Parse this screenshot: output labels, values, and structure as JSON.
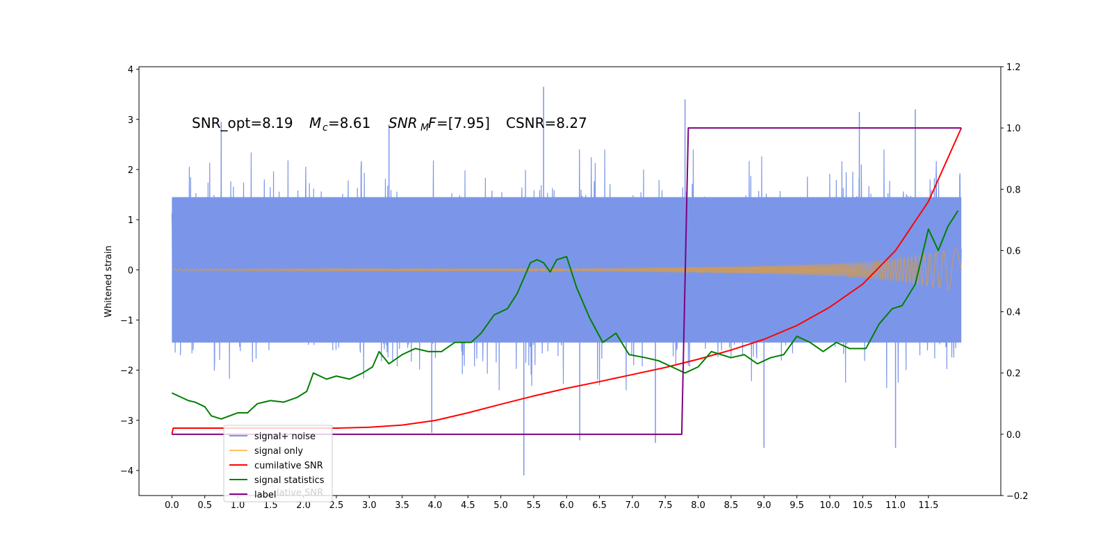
{
  "chart_data": {
    "type": "line",
    "annotation": {
      "snr_opt": "SNR_opt=8.19",
      "mc_symbol": "M",
      "mc_sub": "c",
      "mc_value": "=8.61",
      "snrmf_symbol": "SNR",
      "snrmf_sub": "M",
      "snrmf_tail": "F",
      "snrmf_value": "=[7.95]",
      "csnr": "CSNR=8.27"
    },
    "xlabel": "",
    "ylabel": "Whitened strain",
    "y2label": "",
    "xlim": [
      -0.5,
      12.6
    ],
    "ylim": [
      -4.5,
      4.05
    ],
    "y2lim": [
      -0.2,
      1.2
    ],
    "xticks": [
      "0.0",
      "0.5",
      "1.0",
      "1.5",
      "2.0",
      "2.5",
      "3.0",
      "3.5",
      "4.0",
      "4.5",
      "5.0",
      "5.5",
      "6.0",
      "6.5",
      "7.0",
      "7.5",
      "8.0",
      "8.5",
      "9.0",
      "9.5",
      "10.0",
      "10.5",
      "11.0",
      "11.5"
    ],
    "yticks": [
      "4",
      "3",
      "2",
      "1",
      "0",
      "−1",
      "−2",
      "−3",
      "−4"
    ],
    "y2ticks": [
      "1.2",
      "1.0",
      "0.8",
      "0.6",
      "0.4",
      "0.2",
      "0.0",
      "−0.2"
    ],
    "legend_position": "lower-left",
    "legend": [
      {
        "name": "signal+ noise",
        "color": "#7b96e8"
      },
      {
        "name": "signal only",
        "color": "#ffbf66"
      },
      {
        "name": "cumilative SNR",
        "color": "#ff0000"
      },
      {
        "name": "signal statistics",
        "color": "#007f00"
      },
      {
        "name": "label",
        "color": "#800080"
      }
    ],
    "legend_ghost_text": "lative SNR",
    "noise_envelope": {
      "x": [
        0.0,
        2.0,
        4.0,
        6.0,
        8.0,
        10.0,
        12.0
      ],
      "upper_typ": [
        1.6,
        1.6,
        1.6,
        1.6,
        1.6,
        1.6,
        1.6
      ],
      "lower_typ": [
        -1.6,
        -1.6,
        -1.6,
        -1.6,
        -1.6,
        -1.6,
        -1.6
      ],
      "peaks": [
        {
          "x": 5.65,
          "y": 3.65
        },
        {
          "x": 7.8,
          "y": 3.4
        },
        {
          "x": 11.3,
          "y": 3.2
        },
        {
          "x": 10.45,
          "y": 3.15
        },
        {
          "x": 5.35,
          "y": -4.1
        },
        {
          "x": 7.35,
          "y": -3.45
        },
        {
          "x": 9.0,
          "y": -3.55
        },
        {
          "x": 11.0,
          "y": -3.55
        },
        {
          "x": 6.2,
          "y": -3.4
        },
        {
          "x": 3.95,
          "y": -3.25
        },
        {
          "x": 0.75,
          "y": 2.95
        },
        {
          "x": 3.3,
          "y": 2.9
        }
      ]
    },
    "signal_only": {
      "x": [
        0.0,
        2.0,
        4.0,
        6.0,
        7.0,
        8.0,
        9.0,
        10.0,
        10.5,
        11.0,
        11.5,
        12.0
      ],
      "amplitude": [
        0.02,
        0.02,
        0.025,
        0.03,
        0.04,
        0.06,
        0.08,
        0.12,
        0.16,
        0.22,
        0.32,
        0.45
      ]
    },
    "series": [
      {
        "name": "cumilative SNR",
        "axis": "right",
        "x": [
          0.0,
          0.02,
          0.5,
          1.0,
          2.0,
          2.5,
          3.0,
          3.5,
          4.0,
          4.5,
          5.0,
          5.5,
          6.0,
          6.5,
          7.0,
          7.5,
          8.0,
          8.5,
          9.0,
          9.5,
          10.0,
          10.5,
          11.0,
          11.5,
          12.0
        ],
        "y": [
          0.0,
          0.02,
          0.02,
          0.02,
          0.02,
          0.02,
          0.023,
          0.03,
          0.045,
          0.07,
          0.098,
          0.125,
          0.15,
          0.172,
          0.195,
          0.218,
          0.245,
          0.275,
          0.31,
          0.355,
          0.415,
          0.49,
          0.6,
          0.76,
          1.0
        ]
      },
      {
        "name": "signal statistics",
        "axis": "right",
        "x": [
          0.0,
          0.15,
          0.25,
          0.35,
          0.5,
          0.6,
          0.75,
          1.0,
          1.15,
          1.3,
          1.5,
          1.7,
          1.9,
          2.05,
          2.15,
          2.35,
          2.5,
          2.7,
          2.9,
          3.05,
          3.15,
          3.3,
          3.5,
          3.7,
          3.9,
          4.1,
          4.3,
          4.55,
          4.7,
          4.9,
          5.1,
          5.25,
          5.45,
          5.55,
          5.65,
          5.75,
          5.85,
          6.0,
          6.15,
          6.35,
          6.55,
          6.75,
          6.95,
          7.2,
          7.4,
          7.6,
          7.8,
          8.0,
          8.2,
          8.5,
          8.7,
          8.9,
          9.1,
          9.3,
          9.5,
          9.7,
          9.9,
          10.1,
          10.3,
          10.55,
          10.75,
          10.95,
          11.1,
          11.3,
          11.4,
          11.5,
          11.65,
          11.8,
          11.95
        ],
        "y": [
          0.135,
          0.12,
          0.11,
          0.105,
          0.09,
          0.06,
          0.05,
          0.07,
          0.07,
          0.1,
          0.11,
          0.105,
          0.12,
          0.14,
          0.2,
          0.18,
          0.19,
          0.18,
          0.2,
          0.22,
          0.27,
          0.23,
          0.26,
          0.28,
          0.27,
          0.27,
          0.3,
          0.3,
          0.33,
          0.39,
          0.41,
          0.46,
          0.56,
          0.57,
          0.56,
          0.53,
          0.57,
          0.58,
          0.48,
          0.38,
          0.3,
          0.33,
          0.26,
          0.25,
          0.24,
          0.22,
          0.2,
          0.22,
          0.27,
          0.25,
          0.26,
          0.23,
          0.25,
          0.26,
          0.32,
          0.3,
          0.27,
          0.3,
          0.28,
          0.28,
          0.36,
          0.41,
          0.42,
          0.49,
          0.58,
          0.67,
          0.6,
          0.68,
          0.73
        ]
      },
      {
        "name": "label",
        "axis": "right",
        "x": [
          0.0,
          7.75,
          7.85,
          12.0
        ],
        "y": [
          0.0,
          0.0,
          1.0,
          1.0
        ]
      }
    ]
  }
}
